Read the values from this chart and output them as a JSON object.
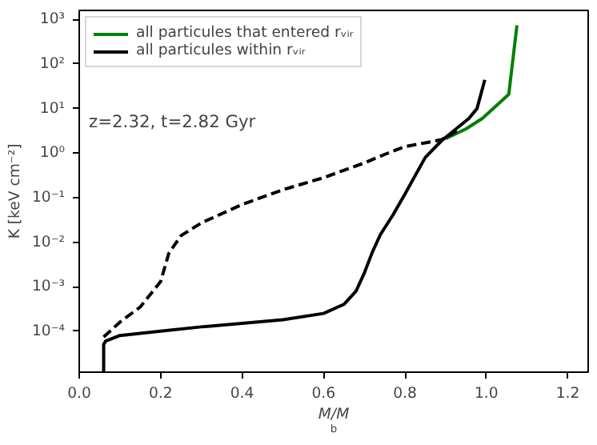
{
  "chart_data": {
    "type": "line",
    "xlabel": "M/M$_{b}$",
    "ylabel": "K [keV cm⁻²]",
    "log": "y",
    "xlim": [
      0,
      1.25
    ],
    "ylim": [
      1.2e-05,
      1600.0
    ],
    "xticks": [
      {
        "value": 0,
        "label": "0.0"
      },
      0.2,
      0.4,
      0.6,
      0.8,
      {
        "value": 1,
        "label": "1.0"
      },
      1.2
    ],
    "yticks": [
      {
        "value": 0.0001,
        "label": "10⁻⁴"
      },
      {
        "value": 0.001,
        "label": "10⁻³"
      },
      {
        "value": 0.01,
        "label": "10⁻²"
      },
      {
        "value": 0.1,
        "label": "10⁻¹"
      },
      {
        "value": 1,
        "label": "10⁰"
      },
      {
        "value": 10,
        "label": "10¹"
      },
      {
        "value": 100,
        "label": "10²"
      },
      {
        "value": 1000,
        "label": "10³"
      }
    ],
    "grid": false,
    "legend": "top left",
    "marker": "none",
    "annotations": [
      "z=2.32, t=2.82 Gyr"
    ],
    "series": [
      {
        "name": "all particules that entered rᵥᵢᵣ",
        "color": "#008000",
        "line_style": "solid",
        "x": [
          0.9,
          0.95,
          0.99,
          1.024,
          1.055,
          1.075
        ],
        "values": [
          2.1,
          3.5,
          6,
          11.5,
          21,
          740
        ]
      },
      {
        "name": "all particules within rᵥᵢᵣ",
        "color": "#000000",
        "line_style": "solid",
        "x": [
          0.06,
          0.06,
          0.065,
          0.1,
          0.2,
          0.3,
          0.4,
          0.5,
          0.6,
          0.65,
          0.68,
          0.7,
          0.72,
          0.74,
          0.77,
          0.8,
          0.85,
          0.89,
          0.957,
          0.977,
          0.996
        ],
        "values": [
          1.2e-05,
          5e-05,
          6e-05,
          8e-05,
          0.0001,
          0.000125,
          0.00015,
          0.00018,
          0.00025,
          0.0004,
          0.0008,
          0.002,
          0.006,
          0.015,
          0.04,
          0.12,
          0.8,
          1.9,
          6,
          10,
          44
        ]
      },
      {
        "color": "#000000",
        "line_style": "dashed",
        "x": [
          0.06,
          0.1,
          0.15,
          0.2,
          0.22,
          0.25,
          0.3,
          0.4,
          0.5,
          0.6,
          0.7,
          0.75,
          0.8,
          0.85,
          0.89,
          0.93
        ],
        "values": [
          7.4e-05,
          0.00016,
          0.00035,
          0.0013,
          0.0056,
          0.014,
          0.027,
          0.07,
          0.15,
          0.28,
          0.6,
          0.93,
          1.4,
          1.7,
          2.0,
          3.2
        ]
      }
    ]
  }
}
